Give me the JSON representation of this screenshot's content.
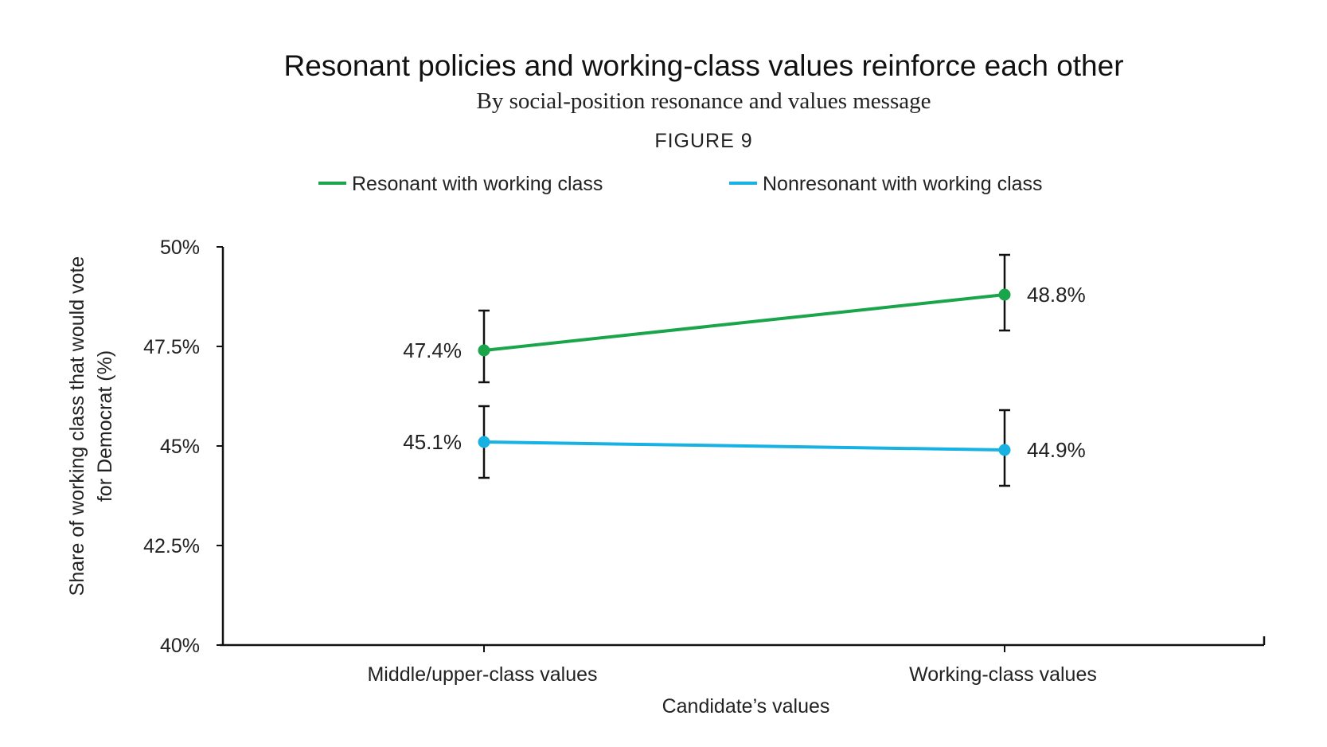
{
  "chart_data": {
    "type": "line",
    "title": "Resonant policies and working-class values reinforce each other",
    "subtitle": "By social-position resonance and values message",
    "figure_label": "FIGURE 9",
    "xlabel": "Candidate’s values",
    "ylabel_lines": [
      "Share of working class that would vote",
      "for Democrat (%)"
    ],
    "categories": [
      "Middle/upper-class values",
      "Working-class values"
    ],
    "ylim": [
      40,
      50
    ],
    "yticks": [
      40,
      42.5,
      45,
      47.5,
      50
    ],
    "ytick_labels": [
      "40%",
      "42.5%",
      "45%",
      "47.5%",
      "50%"
    ],
    "grid": false,
    "legend_position": "top",
    "series": [
      {
        "name": "Resonant with working class",
        "color": "#1aa54b",
        "values": [
          47.4,
          48.8
        ],
        "labels": [
          "47.4%",
          "48.8%"
        ],
        "error_low": [
          46.6,
          47.9
        ],
        "error_high": [
          48.4,
          49.8
        ],
        "label_side": [
          "left",
          "right"
        ]
      },
      {
        "name": "Nonresonant with working class",
        "color": "#17b1e3",
        "values": [
          45.1,
          44.9
        ],
        "labels": [
          "45.1%",
          "44.9%"
        ],
        "error_low": [
          44.2,
          44.0
        ],
        "error_high": [
          46.0,
          45.9
        ],
        "label_side": [
          "left",
          "right"
        ]
      }
    ]
  }
}
